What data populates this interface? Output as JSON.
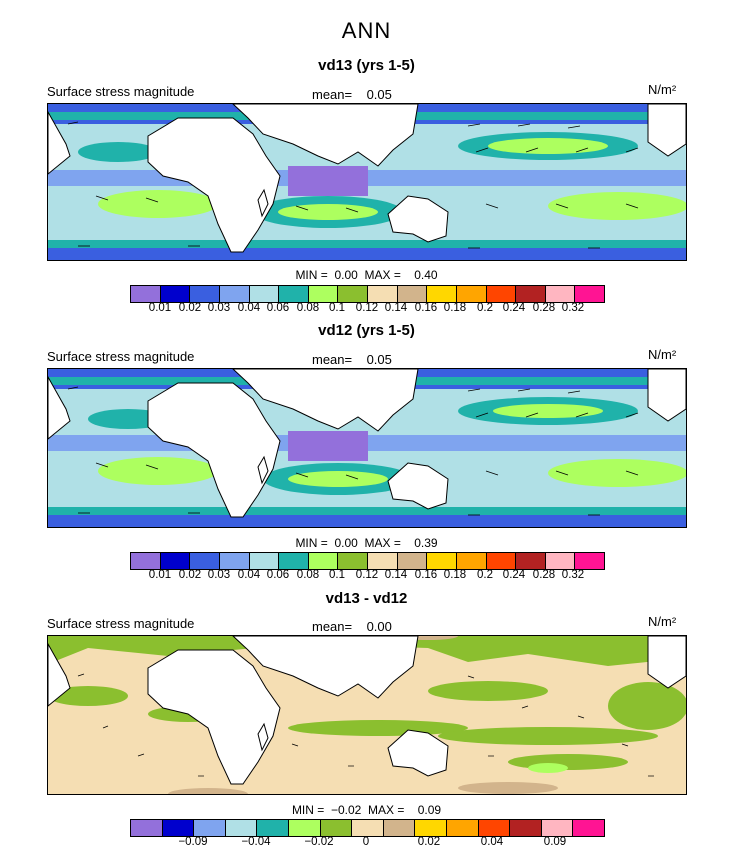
{
  "title": "ANN",
  "panel_label": "Surface stress magnitude",
  "mean_label": "mean=",
  "units": "N/m²",
  "min_label": "MIN =",
  "max_label": "MAX =",
  "colors": {
    "land": "#ffffff",
    "ocean_scale": [
      "#9370db",
      "#0000cd",
      "#3a5fe0",
      "#7fa4ef",
      "#b0e0e6",
      "#20b2aa",
      "#adff5f",
      "#8bbf2f",
      "#f5deb3",
      "#d2b48c",
      "#ffd700",
      "#ffa500",
      "#ff4500",
      "#b22222",
      "#ffb6c1",
      "#ff1493"
    ]
  },
  "chart_data": [
    {
      "type": "heatmap",
      "title": "vd13 (yrs 1-5)",
      "variable": "Surface stress magnitude",
      "units": "N/m²",
      "mean": "0.05",
      "min": "0.00",
      "max": "0.40",
      "colorbar_levels": [
        "0.01",
        "0.02",
        "0.03",
        "0.04",
        "0.06",
        "0.08",
        "0.1",
        "0.12",
        "0.14",
        "0.16",
        "0.18",
        "0.2",
        "0.24",
        "0.28",
        "0.32"
      ]
    },
    {
      "type": "heatmap",
      "title": "vd12 (yrs 1-5)",
      "variable": "Surface stress magnitude",
      "units": "N/m²",
      "mean": "0.05",
      "min": "0.00",
      "max": "0.39",
      "colorbar_levels": [
        "0.01",
        "0.02",
        "0.03",
        "0.04",
        "0.06",
        "0.08",
        "0.1",
        "0.12",
        "0.14",
        "0.16",
        "0.18",
        "0.2",
        "0.24",
        "0.28",
        "0.32"
      ]
    },
    {
      "type": "heatmap",
      "title": "vd13 - vd12",
      "variable": "Surface stress magnitude",
      "units": "N/m²",
      "mean": "0.00",
      "min": "−0.02",
      "max": "0.09",
      "colorbar_levels": [
        "−0.09",
        "−0.04",
        "−0.02",
        "0",
        "0.02",
        "0.04",
        "0.09"
      ],
      "diff_colors": [
        "#9370db",
        "#0000cd",
        "#7fa4ef",
        "#b0e0e6",
        "#20b2aa",
        "#adff5f",
        "#8bbf2f",
        "#f5deb3",
        "#d2b48c",
        "#ffd700",
        "#ffa500",
        "#ff4500",
        "#b22222",
        "#ffb6c1",
        "#ff1493"
      ]
    }
  ]
}
